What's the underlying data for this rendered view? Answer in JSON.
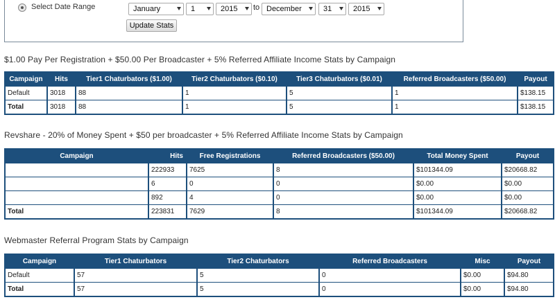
{
  "filter": {
    "radio_label": "Select Date Range",
    "from_month": "January",
    "from_day": "1",
    "from_year": "2015",
    "to_label": "to",
    "to_month": "December",
    "to_day": "31",
    "to_year": "2015",
    "update_button": "Update Stats"
  },
  "table1": {
    "title": "$1.00 Pay Per Registration + $50.00 Per Broadcaster + 5% Referred Affiliate Income Stats by Campaign",
    "headers": [
      "Campaign",
      "Hits",
      "Tier1 Chaturbators ($1.00)",
      "Tier2 Chaturbators ($0.10)",
      "Tier3 Chaturbators ($0.01)",
      "Referred Broadcasters ($50.00)",
      "Payout"
    ],
    "rows": [
      [
        "Default",
        "3018",
        "88",
        "1",
        "5",
        "1",
        "$138.15"
      ],
      [
        "Total",
        "3018",
        "88",
        "1",
        "5",
        "1",
        "$138.15"
      ]
    ]
  },
  "table2": {
    "title": "Revshare - 20% of Money Spent + $50 per broadcaster + 5% Referred Affiliate Income Stats by Campaign",
    "headers": [
      "Campaign",
      "Hits",
      "Free Registrations",
      "Referred Broadcasters ($50.00)",
      "Total Money Spent",
      "Payout"
    ],
    "rows": [
      [
        "",
        "222933",
        "7625",
        "8",
        "$101344.09",
        "$20668.82"
      ],
      [
        "",
        "6",
        "0",
        "0",
        "$0.00",
        "$0.00"
      ],
      [
        "",
        "892",
        "4",
        "0",
        "$0.00",
        "$0.00"
      ],
      [
        "Total",
        "223831",
        "7629",
        "8",
        "$101344.09",
        "$20668.82"
      ]
    ]
  },
  "table3": {
    "title": "Webmaster Referral Program Stats by Campaign",
    "headers": [
      "Campaign",
      "Tier1 Chaturbators",
      "Tier2 Chaturbators",
      "Referred Broadcasters",
      "Misc",
      "Payout"
    ],
    "rows": [
      [
        "Default",
        "57",
        "5",
        "0",
        "$0.00",
        "$94.80"
      ],
      [
        "Total",
        "57",
        "5",
        "0",
        "$0.00",
        "$94.80"
      ]
    ]
  }
}
